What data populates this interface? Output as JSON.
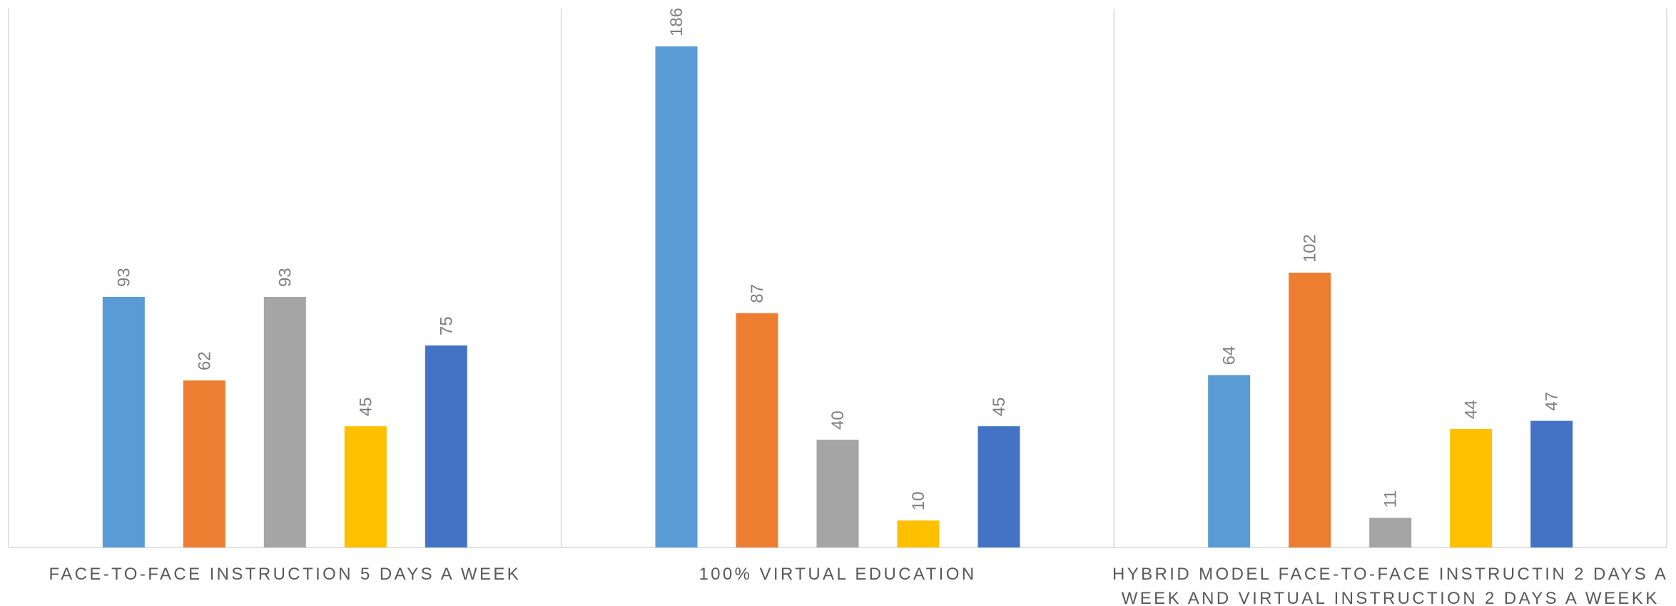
{
  "chart_data": {
    "type": "bar",
    "categories": [
      [
        "FACE-TO-FACE INSTRUCTION 5 DAYS A WEEK"
      ],
      [
        "100% VIRTUAL EDUCATION"
      ],
      [
        "HYBRID MODEL FACE-TO-FACE INSTRUCTIN 2 DAYS A",
        "WEEK AND VIRTUAL INSTRUCTION 2 DAYS A WEEKK"
      ]
    ],
    "series": [
      {
        "color": "#5B9BD5",
        "values": [
          93,
          186,
          64
        ]
      },
      {
        "color": "#ED7D31",
        "values": [
          62,
          87,
          102
        ]
      },
      {
        "color": "#A5A5A5",
        "values": [
          93,
          40,
          11
        ]
      },
      {
        "color": "#FFC000",
        "values": [
          45,
          10,
          44
        ]
      },
      {
        "color": "#4472C4",
        "values": [
          75,
          45,
          47
        ]
      }
    ],
    "ylim": [
      0,
      200
    ],
    "data_labels": true,
    "grid": false,
    "legend": "none"
  }
}
